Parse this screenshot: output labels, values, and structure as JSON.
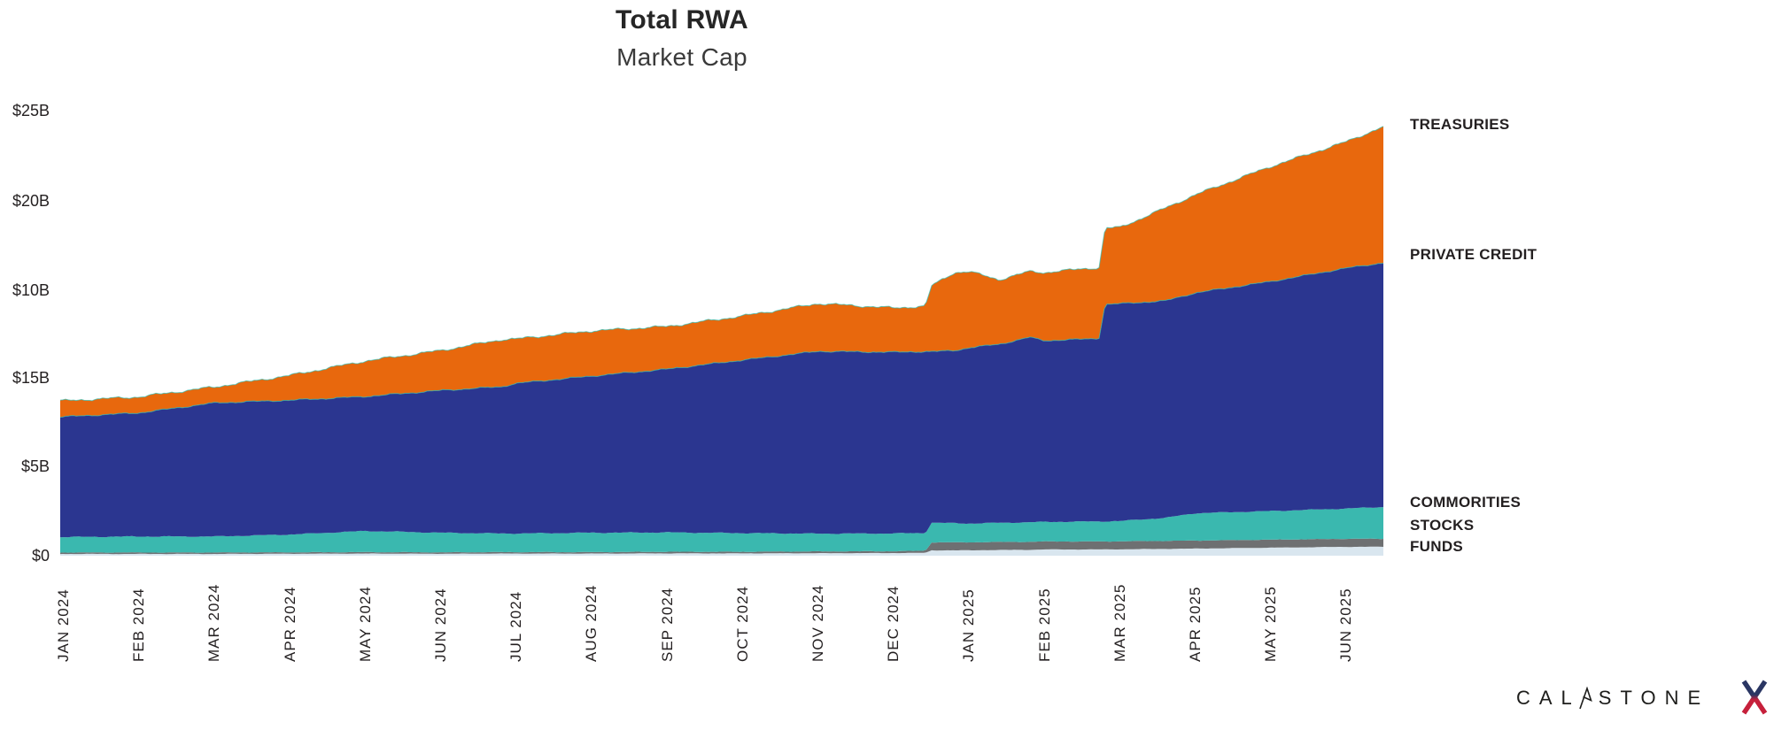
{
  "title": "Total RWA",
  "subtitle": "Market Cap",
  "y_axis": {
    "tick_labels_top_to_bottom": [
      "$25B",
      "$20B",
      "$10B",
      "$15B",
      "$5B",
      "$0"
    ]
  },
  "x_axis": {
    "labels": [
      "JAN 2024",
      "FEB 2024",
      "MAR 2024",
      "APR 2024",
      "MAY 2024",
      "JUN 2024",
      "JUL 2024",
      "AUG 2024",
      "SEP 2024",
      "OCT 2024",
      "NOV 2024",
      "DEC 2024",
      "JAN 2025",
      "FEB 2025",
      "MAR 2025",
      "APR 2025",
      "MAY 2025",
      "JUN 2025"
    ]
  },
  "series_labels": [
    {
      "label": "TREASURIES",
      "color": "#E8680D"
    },
    {
      "label": "PRIVATE CREDIT",
      "color": "#2B3690"
    },
    {
      "label": "COMMORITIES",
      "color": "#3AB8AF"
    },
    {
      "label": "STOCKS",
      "color": "#6E7072"
    },
    {
      "label": "FUNDS",
      "color": "#D9E6EF"
    }
  ],
  "logo": {
    "text": "CALASTONE"
  },
  "chart_data": {
    "type": "area",
    "stacked": true,
    "units": "USD billions",
    "title": "Total RWA",
    "subtitle": "Market Cap",
    "ylim": [
      0,
      25
    ],
    "y_tick_labels_as_displayed_top_to_bottom": [
      "$25B",
      "$20B",
      "$10B",
      "$15B",
      "$5B",
      "$0"
    ],
    "grid": false,
    "legend_position": "right-edge-labels",
    "categories": [
      "JAN 2024",
      "FEB 2024",
      "MAR 2024",
      "APR 2024",
      "MAY 2024",
      "JUN 2024",
      "JUL 2024",
      "AUG 2024",
      "SEP 2024",
      "OCT 2024",
      "NOV 2024",
      "DEC 2024",
      "JAN 2025",
      "FEB 2025",
      "MAR 2025",
      "APR 2025",
      "MAY 2025",
      "JUN 2025"
    ],
    "series": [
      {
        "name": "FUNDS",
        "color": "#D9E6EF",
        "values": [
          0.1,
          0.1,
          0.1,
          0.11,
          0.12,
          0.11,
          0.12,
          0.12,
          0.13,
          0.13,
          0.14,
          0.15,
          0.3,
          0.35,
          0.36,
          0.4,
          0.45,
          0.5
        ]
      },
      {
        "name": "STOCKS",
        "color": "#6E7072",
        "values": [
          0.08,
          0.08,
          0.08,
          0.08,
          0.08,
          0.08,
          0.08,
          0.08,
          0.09,
          0.09,
          0.1,
          0.1,
          0.45,
          0.45,
          0.45,
          0.45,
          0.45,
          0.45
        ]
      },
      {
        "name": "COMMORITIES",
        "color": "#3AB8AF",
        "values": [
          0.85,
          0.9,
          0.9,
          1.0,
          1.2,
          1.1,
          1.05,
          1.1,
          1.1,
          1.05,
          1.0,
          1.0,
          1.05,
          1.1,
          1.15,
          1.55,
          1.6,
          1.7
        ]
      },
      {
        "name": "PRIVATE CREDIT",
        "color": "#2B3690",
        "values": [
          6.75,
          6.95,
          7.5,
          7.55,
          7.55,
          8.0,
          8.45,
          8.8,
          9.2,
          9.75,
          10.25,
          10.2,
          9.9,
          10.2,
          12.2,
          12.4,
          12.9,
          13.5
        ]
      },
      {
        "name": "TREASURIES",
        "color": "#E8680D",
        "values": [
          0.9,
          0.9,
          0.9,
          1.4,
          2.0,
          2.25,
          2.5,
          2.55,
          2.4,
          2.5,
          2.7,
          2.5,
          4.3,
          3.85,
          4.3,
          5.5,
          6.45,
          7.1
        ]
      }
    ],
    "render_samples": {
      "columns": [
        "month_index",
        "funds",
        "stocks",
        "commodities",
        "private_credit",
        "treasuries"
      ],
      "rows": [
        [
          0.0,
          0.1,
          0.08,
          0.87,
          6.76,
          0.9
        ],
        [
          1.0,
          0.1,
          0.08,
          0.9,
          6.95,
          0.9
        ],
        [
          2.0,
          0.1,
          0.08,
          0.9,
          7.51,
          0.9
        ],
        [
          3.0,
          0.11,
          0.08,
          1.0,
          7.55,
          1.4
        ],
        [
          4.0,
          0.12,
          0.08,
          1.19,
          7.56,
          2.0
        ],
        [
          5.0,
          0.11,
          0.08,
          1.1,
          8.0,
          2.25
        ],
        [
          5.8,
          0.12,
          0.08,
          1.05,
          8.25,
          2.65
        ],
        [
          6.0,
          0.12,
          0.08,
          1.05,
          8.44,
          2.5
        ],
        [
          7.0,
          0.12,
          0.08,
          1.09,
          8.81,
          2.54
        ],
        [
          8.0,
          0.13,
          0.09,
          1.09,
          9.18,
          2.4
        ],
        [
          9.0,
          0.13,
          0.09,
          1.05,
          9.73,
          2.48
        ],
        [
          10.0,
          0.14,
          0.1,
          1.0,
          10.25,
          2.69
        ],
        [
          11.0,
          0.15,
          0.1,
          1.0,
          10.19,
          2.49
        ],
        [
          11.42,
          0.16,
          0.12,
          1.0,
          10.2,
          2.55
        ],
        [
          11.5,
          0.3,
          0.45,
          1.1,
          9.62,
          3.7
        ],
        [
          11.8,
          0.3,
          0.45,
          1.08,
          9.7,
          4.39
        ],
        [
          12.0,
          0.3,
          0.45,
          1.06,
          9.88,
          4.28
        ],
        [
          12.4,
          0.32,
          0.45,
          1.08,
          10.04,
          3.63
        ],
        [
          12.8,
          0.33,
          0.45,
          1.1,
          10.4,
          3.7
        ],
        [
          13.0,
          0.35,
          0.45,
          1.1,
          10.19,
          3.83
        ],
        [
          13.6,
          0.35,
          0.45,
          1.12,
          10.27,
          3.98
        ],
        [
          13.72,
          0.35,
          0.45,
          1.13,
          10.3,
          3.95
        ],
        [
          13.8,
          0.35,
          0.45,
          1.13,
          12.2,
          4.28
        ],
        [
          14.0,
          0.36,
          0.45,
          1.14,
          12.22,
          4.29
        ],
        [
          14.6,
          0.38,
          0.45,
          1.3,
          12.2,
          5.22
        ],
        [
          15.0,
          0.4,
          0.45,
          1.54,
          12.39,
          5.52
        ],
        [
          16.0,
          0.45,
          0.45,
          1.61,
          12.91,
          6.47
        ],
        [
          17.0,
          0.5,
          0.45,
          1.7,
          13.52,
          7.11
        ],
        [
          17.49,
          0.5,
          0.45,
          1.79,
          13.73,
          7.66
        ]
      ]
    },
    "colors": {
      "treasuries": "#E8680D",
      "private_credit": "#2B3690",
      "commodities": "#3AB8AF",
      "stocks": "#6E7072",
      "funds": "#D9E6EF",
      "top_edge_line": "#2FBDB3",
      "logo_x_navy": "#2A3663",
      "logo_x_red": "#C6203B"
    }
  }
}
